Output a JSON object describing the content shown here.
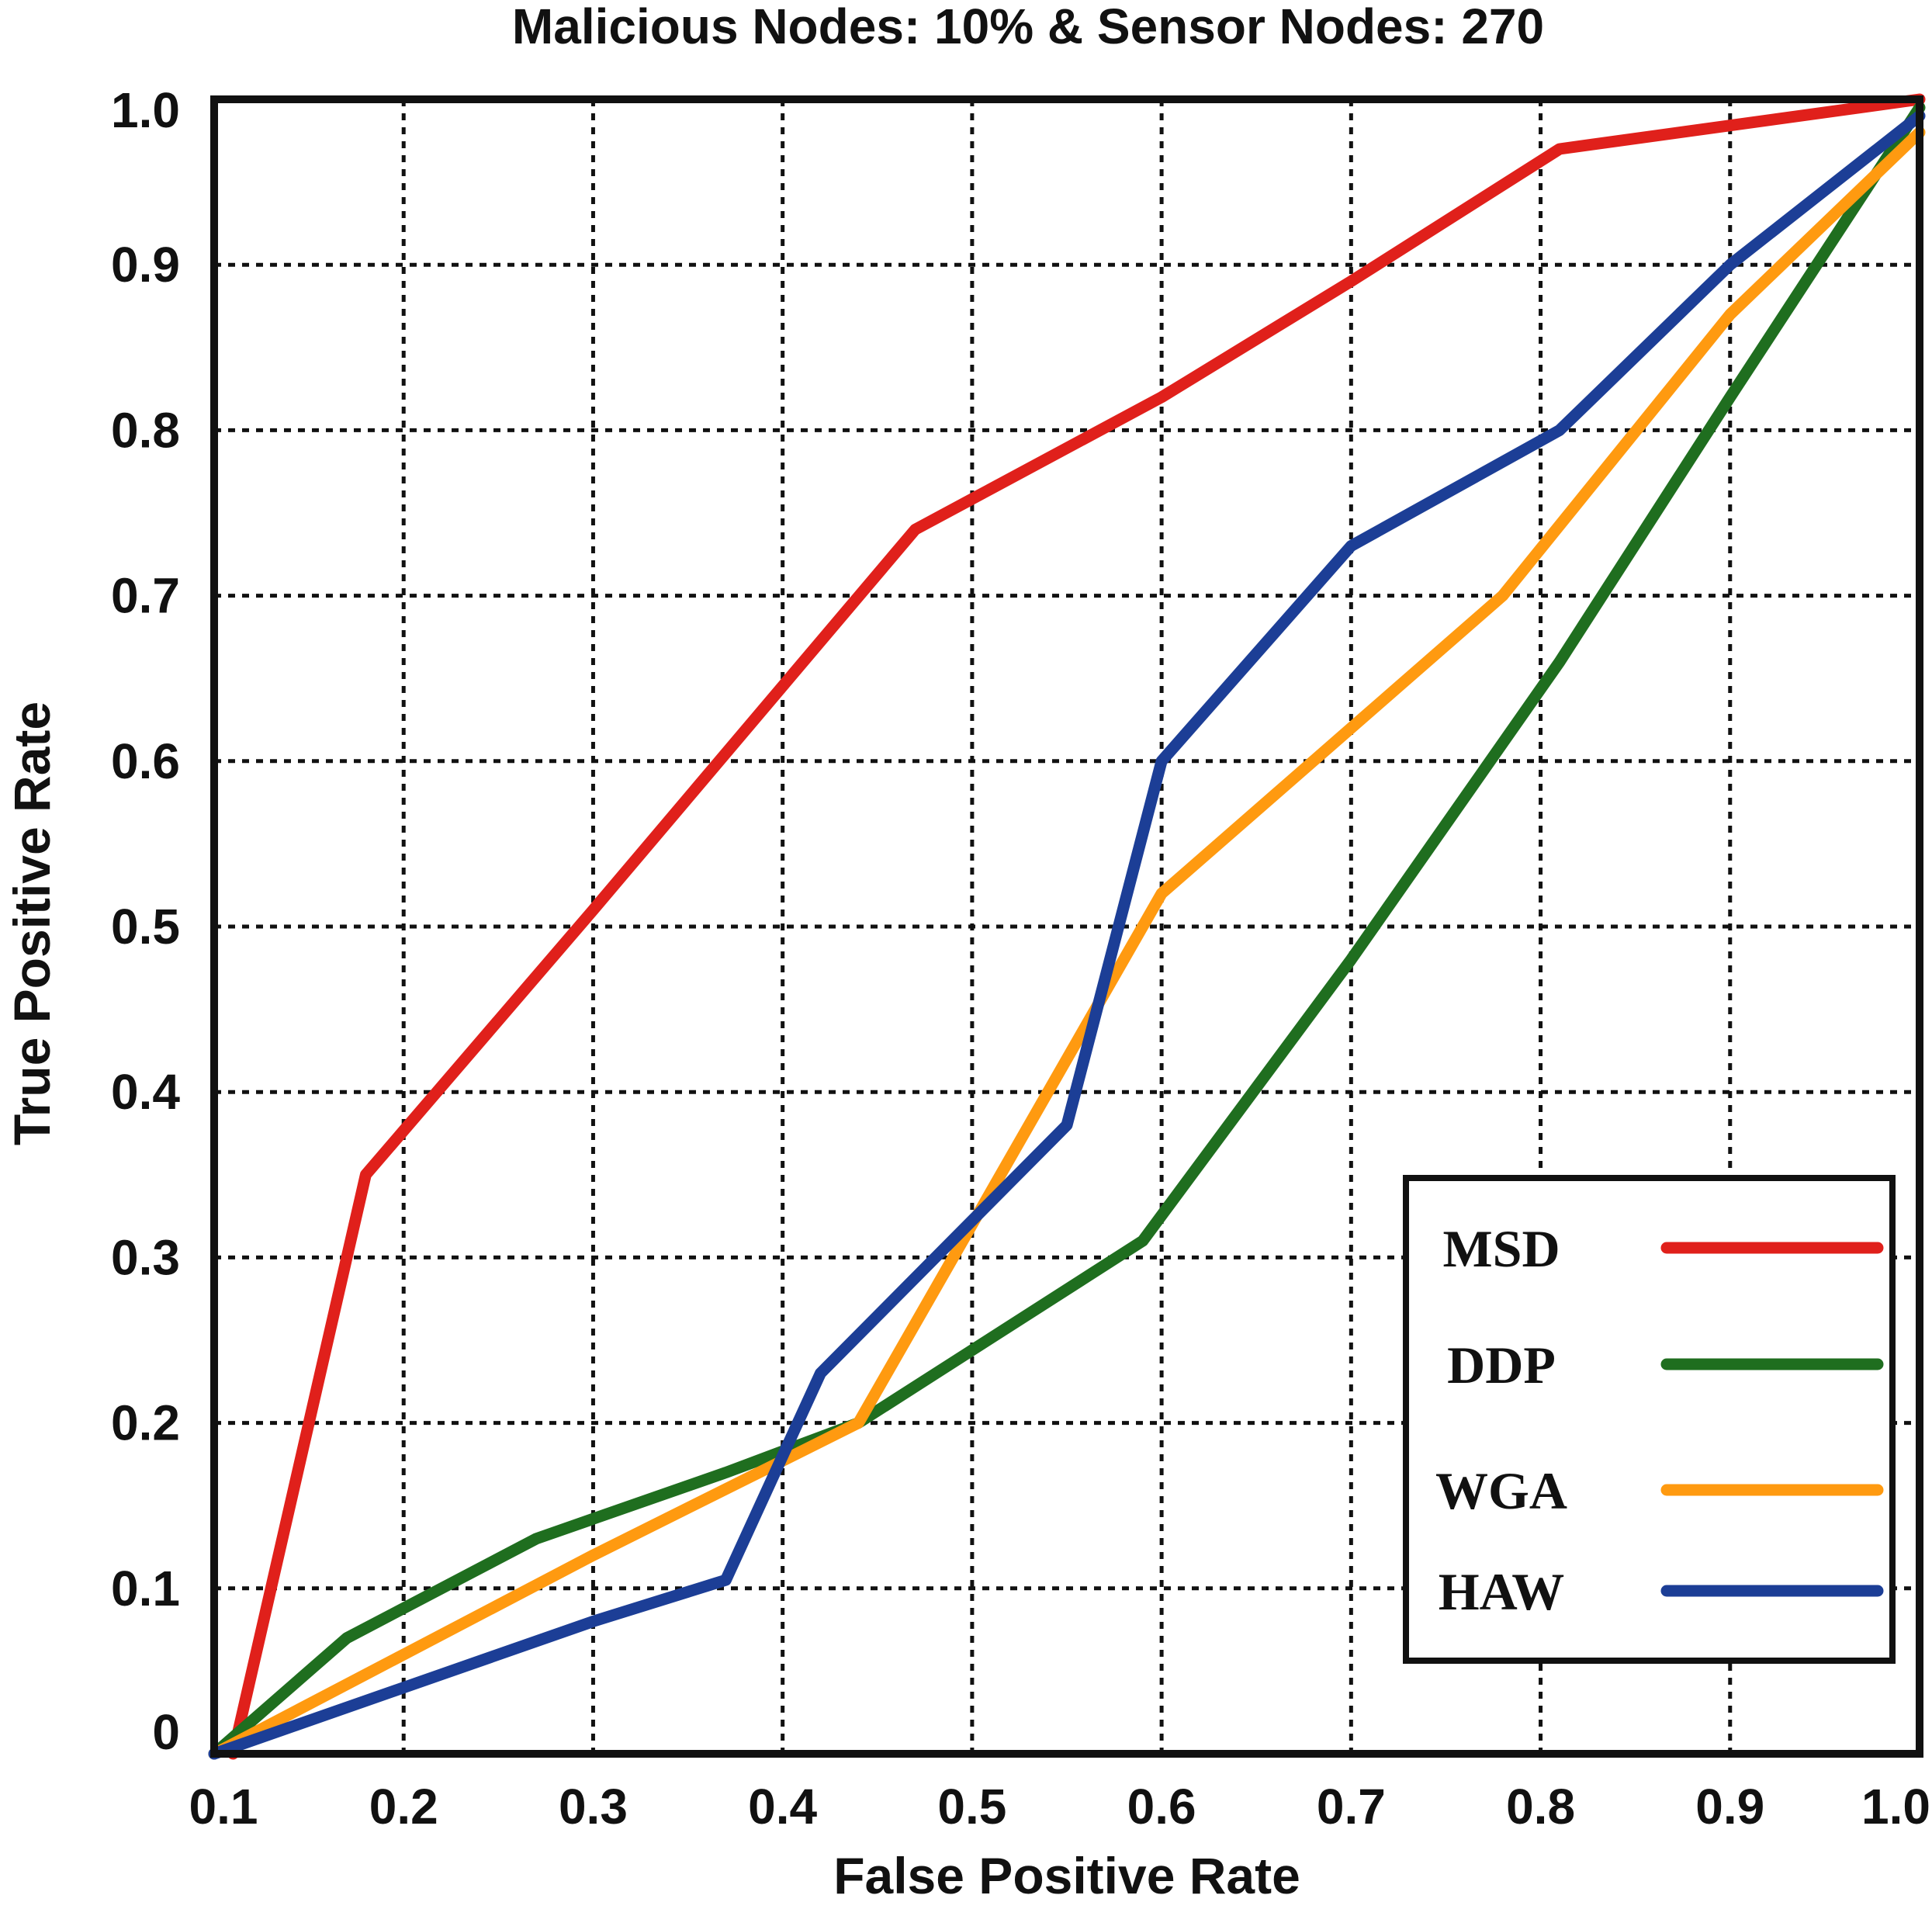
{
  "chart_data": {
    "type": "line",
    "title": "Malicious Nodes: 10% & Sensor Nodes: 270",
    "xlabel": "False Positive Rate",
    "ylabel": "True Positive Rate",
    "xlim": [
      0.1,
      1.0
    ],
    "ylim": [
      0,
      1.0
    ],
    "grid": true,
    "legend_position": "bottom-right",
    "x_ticks": [
      0.1,
      0.2,
      0.3,
      0.4,
      0.5,
      0.6,
      0.7,
      0.8,
      0.9,
      1.0
    ],
    "x_tick_labels": [
      "0.1",
      "0.2",
      "0.3",
      "0.4",
      "0.5",
      "0.6",
      "0.7",
      "0.8",
      "0.9",
      "1.0"
    ],
    "y_ticks": [
      0,
      0.1,
      0.2,
      0.3,
      0.4,
      0.5,
      0.6,
      0.7,
      0.8,
      0.9,
      1.0
    ],
    "y_tick_labels": [
      "0",
      "0.1",
      "0.2",
      "0.3",
      "0.4",
      "0.5",
      "0.6",
      "0.7",
      "0.8",
      "0.9",
      "1.0"
    ],
    "series": [
      {
        "name": "MSD",
        "color": "#e0201b",
        "x": [
          0.11,
          0.18,
          0.3,
          0.47,
          0.6,
          0.7,
          0.81,
          1.0
        ],
        "y": [
          0.0,
          0.35,
          0.51,
          0.74,
          0.82,
          0.89,
          0.97,
          1.0
        ]
      },
      {
        "name": "DDP",
        "color": "#1f6e1f",
        "x": [
          0.1,
          0.17,
          0.27,
          0.37,
          0.44,
          0.59,
          0.7,
          0.81,
          0.9,
          1.0
        ],
        "y": [
          0.0,
          0.07,
          0.13,
          0.17,
          0.2,
          0.31,
          0.48,
          0.66,
          0.82,
          0.995
        ]
      },
      {
        "name": "WGA",
        "color": "#ff9a10",
        "x": [
          0.1,
          0.2,
          0.3,
          0.44,
          0.5,
          0.6,
          0.7,
          0.78,
          0.9,
          1.0
        ],
        "y": [
          0.0,
          0.06,
          0.12,
          0.2,
          0.32,
          0.52,
          0.62,
          0.7,
          0.87,
          0.98
        ]
      },
      {
        "name": "HAW",
        "color": "#1c3e96",
        "x": [
          0.1,
          0.2,
          0.3,
          0.37,
          0.42,
          0.55,
          0.6,
          0.7,
          0.81,
          0.9,
          1.0
        ],
        "y": [
          0.0,
          0.04,
          0.08,
          0.105,
          0.23,
          0.38,
          0.6,
          0.73,
          0.8,
          0.9,
          0.99
        ]
      }
    ]
  }
}
